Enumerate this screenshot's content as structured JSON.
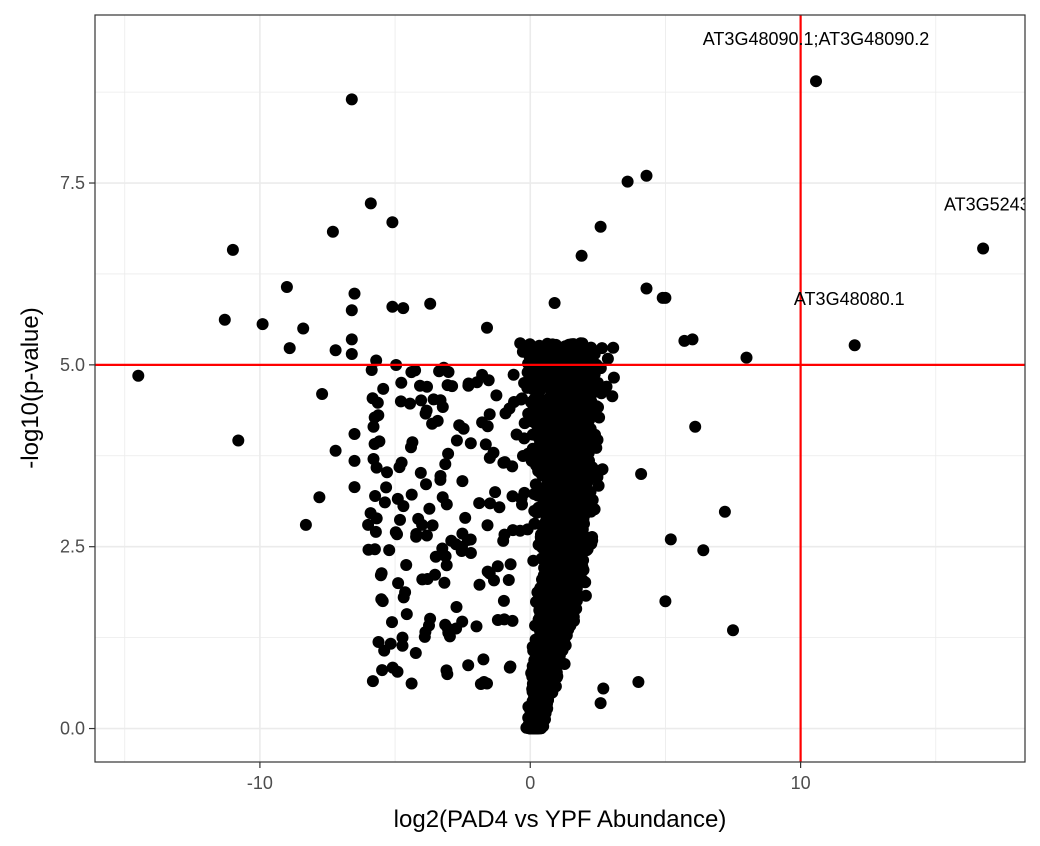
{
  "chart_data": {
    "type": "scatter",
    "title": "",
    "xlabel": "log2(PAD4 vs YPF Abundance)",
    "ylabel": "-log10(p-value)",
    "xlim": [
      -16.1,
      18.3
    ],
    "ylim": [
      -0.46,
      9.81
    ],
    "x_ticks": [
      -10,
      0,
      10
    ],
    "x_tick_labels": [
      "-10",
      "0",
      "10"
    ],
    "y_ticks": [
      0.0,
      2.5,
      5.0,
      7.5
    ],
    "y_tick_labels": [
      "0.0",
      "2.5",
      "5.0",
      "7.5"
    ],
    "grid": true,
    "legend": "none",
    "reference_lines": [
      {
        "orientation": "vertical",
        "value": 10,
        "color": "#ff0000"
      },
      {
        "orientation": "horizontal",
        "value": 5,
        "color": "#ff0000"
      }
    ],
    "annotations": [
      {
        "text": "AT3G48090.1;AT3G48090.2",
        "x": 10.57,
        "y": 9.4
      },
      {
        "text": "AT3G5243(",
        "x": 17.0,
        "y": 7.12
      },
      {
        "text": "AT3G48080.1",
        "x": 11.8,
        "y": 5.82
      }
    ],
    "labeled_points": [
      {
        "x": 10.57,
        "y": 8.9
      },
      {
        "x": 16.75,
        "y": 6.6
      },
      {
        "x": 12.0,
        "y": 5.27
      }
    ],
    "outlier_points": [
      [
        -14.5,
        4.85
      ],
      [
        -11.3,
        5.62
      ],
      [
        -11.0,
        6.58
      ],
      [
        -10.8,
        3.96
      ],
      [
        -9.9,
        5.56
      ],
      [
        -9.0,
        6.07
      ],
      [
        -8.9,
        5.23
      ],
      [
        -8.4,
        5.5
      ],
      [
        -8.3,
        2.8
      ],
      [
        -7.8,
        3.18
      ],
      [
        -7.7,
        4.6
      ],
      [
        -7.3,
        6.83
      ],
      [
        -7.2,
        5.2
      ],
      [
        -7.2,
        3.82
      ],
      [
        -6.6,
        8.65
      ],
      [
        -6.5,
        5.98
      ],
      [
        -6.6,
        5.75
      ],
      [
        -6.6,
        5.35
      ],
      [
        -6.6,
        5.15
      ],
      [
        -6.5,
        4.05
      ],
      [
        -6.5,
        3.32
      ],
      [
        -6.5,
        3.68
      ],
      [
        -6.0,
        2.8
      ],
      [
        -5.9,
        7.22
      ],
      [
        -5.8,
        4.15
      ],
      [
        -5.7,
        5.06
      ],
      [
        -5.1,
        6.96
      ],
      [
        -5.1,
        5.8
      ],
      [
        -4.7,
        5.78
      ],
      [
        -3.7,
        5.84
      ],
      [
        -4.0,
        2.8
      ],
      [
        -3.9,
        1.26
      ],
      [
        -3.2,
        4.96
      ],
      [
        -3.1,
        0.8
      ],
      [
        -1.6,
        5.51
      ],
      [
        -1.5,
        4.32
      ],
      [
        -1.3,
        3.25
      ],
      [
        -1.2,
        2.23
      ],
      [
        -1.0,
        2.58
      ],
      [
        0.9,
        5.85
      ],
      [
        1.9,
        6.5
      ],
      [
        2.6,
        6.9
      ],
      [
        3.6,
        7.52
      ],
      [
        4.3,
        7.6
      ],
      [
        4.3,
        6.05
      ],
      [
        4.9,
        5.92
      ],
      [
        5.0,
        5.92
      ],
      [
        5.7,
        5.33
      ],
      [
        6.0,
        5.35
      ],
      [
        6.1,
        4.15
      ],
      [
        7.2,
        2.98
      ],
      [
        6.4,
        2.45
      ],
      [
        7.5,
        1.35
      ],
      [
        8.0,
        5.1
      ],
      [
        4.0,
        0.64
      ],
      [
        2.7,
        0.55
      ],
      [
        2.6,
        0.35
      ],
      [
        5.0,
        1.75
      ],
      [
        4.1,
        3.5
      ],
      [
        5.2,
        2.6
      ]
    ],
    "cluster_model": {
      "point_count": 2600,
      "center_x": 1.3,
      "x_spread_at_top": 1.6,
      "y_max": 5.3,
      "left_wing_points": 170,
      "left_wing_x_range": [
        -6.0,
        -0.2
      ],
      "left_wing_y_range": [
        0.6,
        5.0
      ]
    },
    "marker_color": "#000000"
  }
}
